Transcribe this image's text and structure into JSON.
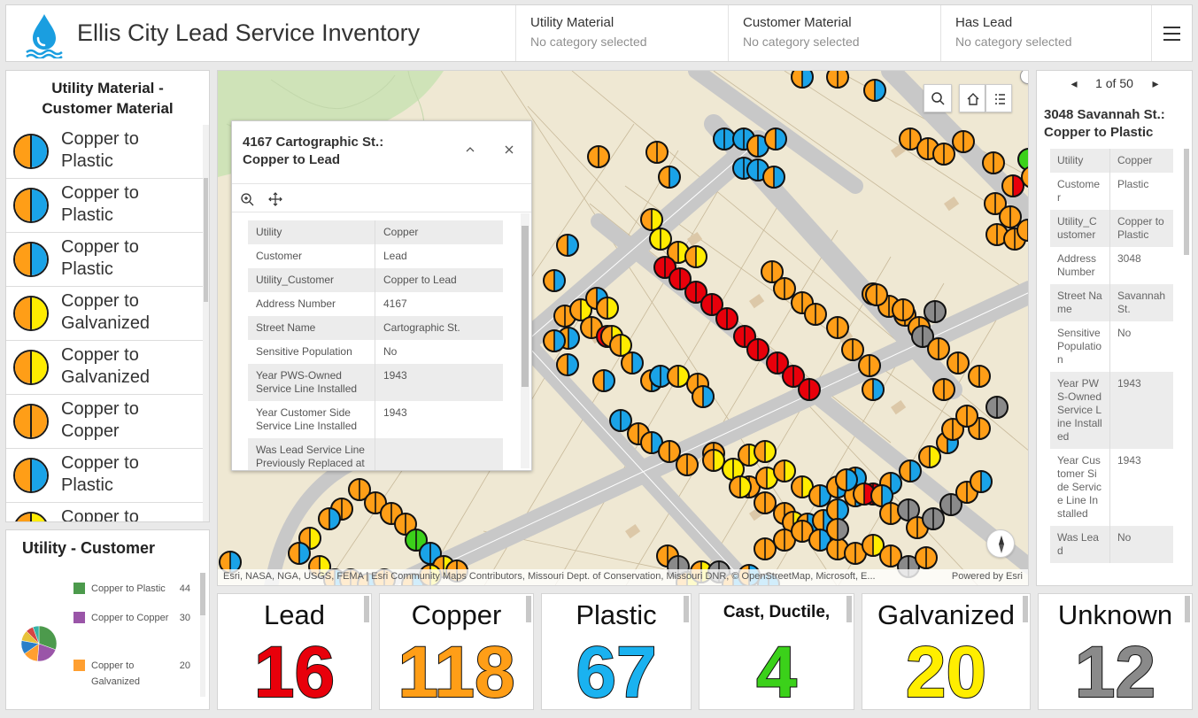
{
  "header": {
    "title": "Ellis City Lead Service Inventory",
    "selectors": [
      {
        "label": "Utility Material",
        "value": "No category selected"
      },
      {
        "label": "Customer Material",
        "value": "No category selected"
      },
      {
        "label": "Has Lead",
        "value": "No category selected"
      }
    ]
  },
  "legend_list": {
    "title_line1": "Utility Material -",
    "title_line2": "Customer Material",
    "items": [
      {
        "line1": "Copper to",
        "line2": "Plastic",
        "left": "#ff9e17",
        "right": "#1aa3e8"
      },
      {
        "line1": "Copper to",
        "line2": "Plastic",
        "left": "#ff9e17",
        "right": "#1aa3e8"
      },
      {
        "line1": "Copper to",
        "line2": "Plastic",
        "left": "#ff9e17",
        "right": "#1aa3e8"
      },
      {
        "line1": "Copper to",
        "line2": "Galvanized",
        "left": "#ff9e17",
        "right": "#ffec00"
      },
      {
        "line1": "Copper to",
        "line2": "Galvanized",
        "left": "#ff9e17",
        "right": "#ffec00"
      },
      {
        "line1": "Copper to",
        "line2": "Copper",
        "left": "#ff9e17",
        "right": "#ff9e17"
      },
      {
        "line1": "Copper to",
        "line2": "Plastic",
        "left": "#ff9e17",
        "right": "#1aa3e8"
      },
      {
        "line1": "Copper to",
        "line2": "",
        "left": "#ff9e17",
        "right": "#ffec00"
      }
    ]
  },
  "pie": {
    "title": "Utility - Customer",
    "legend": [
      {
        "label": "Copper to Plastic",
        "count": "44",
        "color": "#4c9a4c"
      },
      {
        "label": "Copper to Copper",
        "count": "30",
        "color": "#9a55a8"
      },
      {
        "label": "Copper to Galvanized",
        "count": "20",
        "color": "#ff9f30"
      }
    ],
    "slices": [
      {
        "value": 44,
        "color": "#4c9a4c"
      },
      {
        "value": 30,
        "color": "#9a55a8"
      },
      {
        "value": 20,
        "color": "#ff9f30"
      },
      {
        "value": 18,
        "color": "#2a7fc9"
      },
      {
        "value": 14,
        "color": "#e8c23a"
      },
      {
        "value": 10,
        "color": "#d64545"
      },
      {
        "value": 8,
        "color": "#35b2a6"
      }
    ]
  },
  "map": {
    "attribution": "Esri, NASA, NGA, USGS, FEMA | Esri Community Maps Contributors, Missouri Dept. of Conservation, Missouri DNR, © OpenStreetMap, Microsoft, E...",
    "powered": "Powered by Esri"
  },
  "popup": {
    "title_line1": "4167 Cartographic St.:",
    "title_line2": "Copper to Lead",
    "rows": [
      {
        "k": "Utility",
        "v": "Copper"
      },
      {
        "k": "Customer",
        "v": "Lead"
      },
      {
        "k": "Utility_Customer",
        "v": "Copper to Lead"
      },
      {
        "k": "Address Number",
        "v": "4167"
      },
      {
        "k": "Street Name",
        "v": "Cartographic St."
      },
      {
        "k": "Sensitive Population",
        "v": "No"
      },
      {
        "k": "Year PWS-Owned Service Line Installed",
        "v": "1943"
      },
      {
        "k": "Year Customer Side Service Line Installed",
        "v": "1943"
      },
      {
        "k": "Was Lead Service Line Previously Replaced at",
        "v": ""
      }
    ]
  },
  "details": {
    "pager": "1 of 50",
    "title_line1": "3048 Savannah St.:",
    "title_line2": "Copper to Plastic",
    "rows": [
      {
        "k": "Utility",
        "v": "Copper"
      },
      {
        "k": "Customer",
        "v": "Plastic"
      },
      {
        "k": "Utility_Customer",
        "v": "Copper to Plastic"
      },
      {
        "k": "Address Number",
        "v": "3048"
      },
      {
        "k": "Street Name",
        "v": "Savannah St."
      },
      {
        "k": "Sensitive Population",
        "v": "No"
      },
      {
        "k": "Year PWS-Owned Service Line Installed",
        "v": "1943"
      },
      {
        "k": "Year Customer Side Service Line Installed",
        "v": "1943"
      },
      {
        "k": "Was Lead",
        "v": "No"
      }
    ]
  },
  "stats": [
    {
      "label": "Lead",
      "value": "16",
      "color": "#e8000b"
    },
    {
      "label": "Copper",
      "value": "118",
      "color": "#ff9e17"
    },
    {
      "label": "Plastic",
      "value": "67",
      "color": "#1ab2f0"
    },
    {
      "label": "Cast, Ductile,",
      "value": "4",
      "color": "#3bd11a"
    },
    {
      "label": "Galvanized",
      "value": "20",
      "color": "#ffee00"
    },
    {
      "label": "Unknown",
      "value": "12",
      "color": "#8a8a8a"
    }
  ],
  "colors": {
    "copper": "#ff9e17",
    "plastic": "#1aa3e8",
    "lead": "#e8000b",
    "galvanized": "#ffec00",
    "cast": "#3bd11a",
    "unknown": "#8a8a8a"
  }
}
